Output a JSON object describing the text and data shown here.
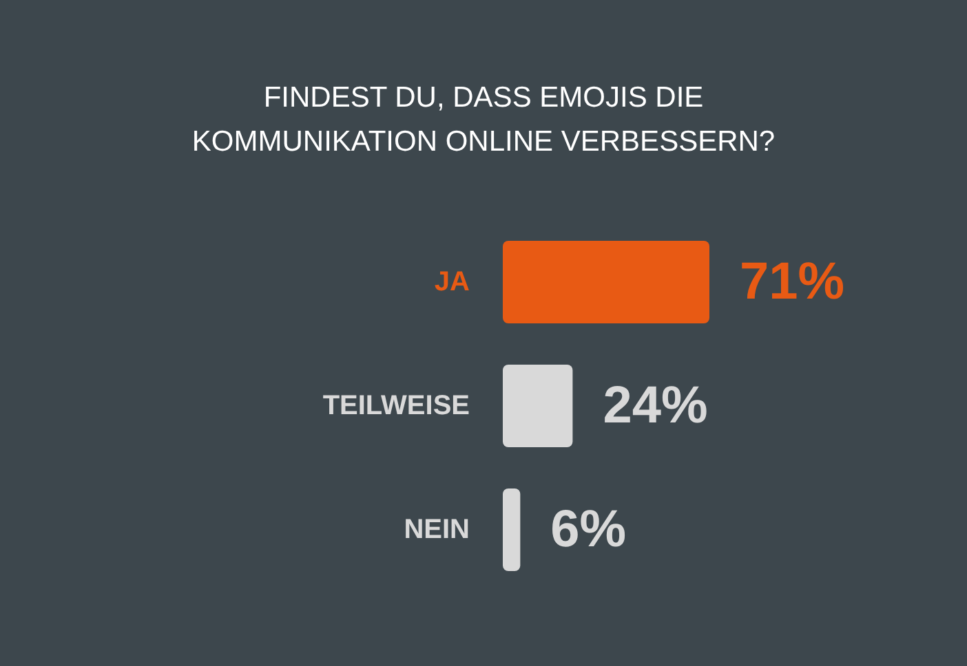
{
  "chart_data": {
    "type": "bar",
    "orientation": "horizontal",
    "title": "FINDEST DU, DASS EMOJIS DIE\nKOMMUNIKATION ONLINE VERBESSERN?",
    "categories": [
      "JA",
      "TEILWEISE",
      "NEIN"
    ],
    "values": [
      71,
      24,
      6
    ],
    "colors": [
      "#e85a14",
      "#d9d9d9",
      "#d9d9d9"
    ],
    "value_labels": [
      "71%",
      "24%",
      "6%"
    ]
  }
}
